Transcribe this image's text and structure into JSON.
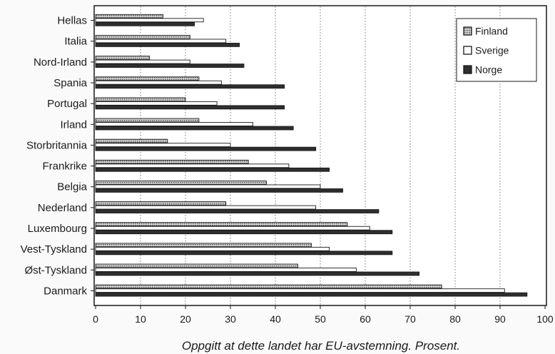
{
  "chart_data": {
    "type": "bar",
    "orientation": "horizontal",
    "xlabel": "Oppgitt at dette landet har EU-avstemning. Prosent.",
    "xlim": [
      0,
      100
    ],
    "xticks": [
      0,
      10,
      20,
      30,
      40,
      50,
      60,
      70,
      80,
      90,
      100
    ],
    "grid": "vertical dotted",
    "legend": "top-right",
    "categories": [
      "Hellas",
      "Italia",
      "Nord-Irland",
      "Spania",
      "Portugal",
      "Irland",
      "Storbritannia",
      "Frankrike",
      "Belgia",
      "Nederland",
      "Luxembourg",
      "Vest-Tyskland",
      "Øst-Tyskland",
      "Danmark"
    ],
    "series": [
      {
        "name": "Finland",
        "color": "#b8b8b8",
        "pattern": "dotted",
        "values": [
          15,
          21,
          12,
          23,
          20,
          23,
          16,
          34,
          38,
          29,
          56,
          48,
          45,
          77
        ]
      },
      {
        "name": "Sverige",
        "color": "#ffffff",
        "pattern": "solid",
        "values": [
          24,
          29,
          21,
          28,
          27,
          35,
          30,
          43,
          50,
          49,
          61,
          52,
          58,
          91
        ]
      },
      {
        "name": "Norge",
        "color": "#2e2e2e",
        "pattern": "solid",
        "values": [
          22,
          32,
          33,
          42,
          42,
          44,
          49,
          52,
          55,
          63,
          66,
          66,
          72,
          96
        ]
      }
    ]
  }
}
